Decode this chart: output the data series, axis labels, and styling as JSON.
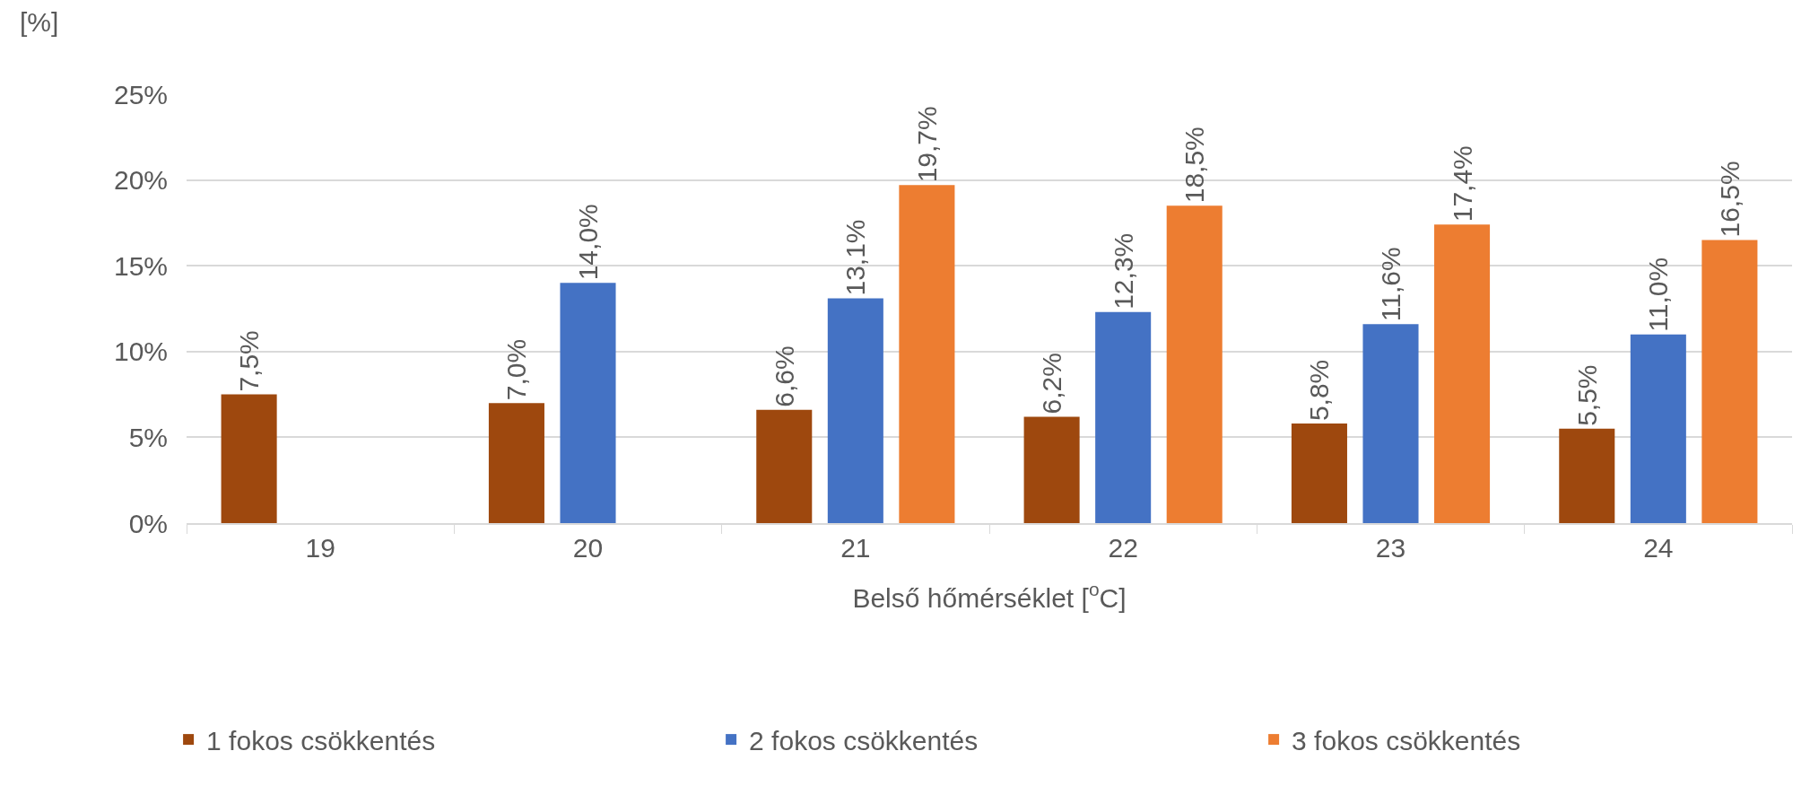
{
  "chart_data": {
    "type": "bar",
    "xlabel": "Belső hőmérséklet [$^{o}$C]",
    "ylabel": "[%]",
    "categories": [
      "19",
      "20",
      "21",
      "22",
      "23",
      "24"
    ],
    "series": [
      {
        "name": "1 fokos csökkentés",
        "color": "#9e480e",
        "values": [
          7.5,
          7.0,
          6.6,
          6.2,
          5.8,
          5.5
        ],
        "value_labels": [
          "7,5%",
          "7,0%",
          "6,6%",
          "6,2%",
          "5,8%",
          "5,5%"
        ]
      },
      {
        "name": "2 fokos csökkentés",
        "color": "#4472c4",
        "values": [
          null,
          14.0,
          13.1,
          12.3,
          11.6,
          11.0
        ],
        "value_labels": [
          null,
          "14,0%",
          "13,1%",
          "12,3%",
          "11,6%",
          "11,0%"
        ]
      },
      {
        "name": "3 fokos csökkentés",
        "color": "#ed7d31",
        "values": [
          null,
          null,
          19.7,
          18.5,
          17.4,
          16.5
        ],
        "value_labels": [
          null,
          null,
          "19,7%",
          "18,5%",
          "17,4%",
          "16,5%"
        ]
      }
    ],
    "ylim": [
      0,
      25
    ],
    "yticks": [
      {
        "value": 0,
        "label": "0%"
      },
      {
        "value": 5,
        "label": "5%"
      },
      {
        "value": 10,
        "label": "10%"
      },
      {
        "value": 15,
        "label": "15%"
      },
      {
        "value": 20,
        "label": "20%"
      },
      {
        "value": 25,
        "label": "25%"
      }
    ],
    "grid": "y",
    "legend": "bottom"
  }
}
